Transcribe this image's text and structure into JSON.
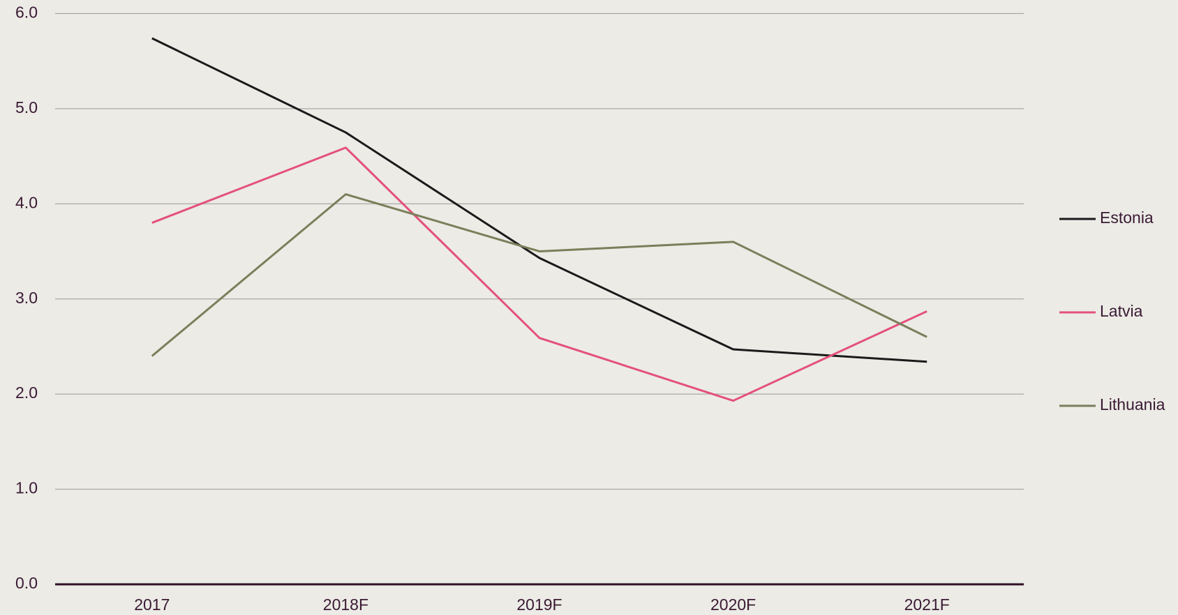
{
  "chart_data": {
    "type": "line",
    "categories": [
      "2017",
      "2018F",
      "2019F",
      "2020F",
      "2021F"
    ],
    "series": [
      {
        "name": "Estonia",
        "color": "#1a1a1a",
        "values": [
          5.74,
          4.75,
          3.43,
          2.47,
          2.34
        ]
      },
      {
        "name": "Latvia",
        "color": "#e4507a",
        "values": [
          3.8,
          4.59,
          2.59,
          1.93,
          2.87
        ]
      },
      {
        "name": "Lithuania",
        "color": "#7a7f5a",
        "values": [
          2.4,
          4.1,
          3.5,
          3.6,
          2.6
        ]
      }
    ],
    "ylim": [
      0,
      6
    ],
    "yticks": [
      {
        "value": 0,
        "label": "0.0"
      },
      {
        "value": 1,
        "label": "1.0"
      },
      {
        "value": 2,
        "label": "2.0"
      },
      {
        "value": 3,
        "label": "3.0"
      },
      {
        "value": 4,
        "label": "4.0"
      },
      {
        "value": 5,
        "label": "5.0"
      },
      {
        "value": 6,
        "label": "6.0"
      }
    ],
    "grid": true,
    "legend": "right"
  }
}
